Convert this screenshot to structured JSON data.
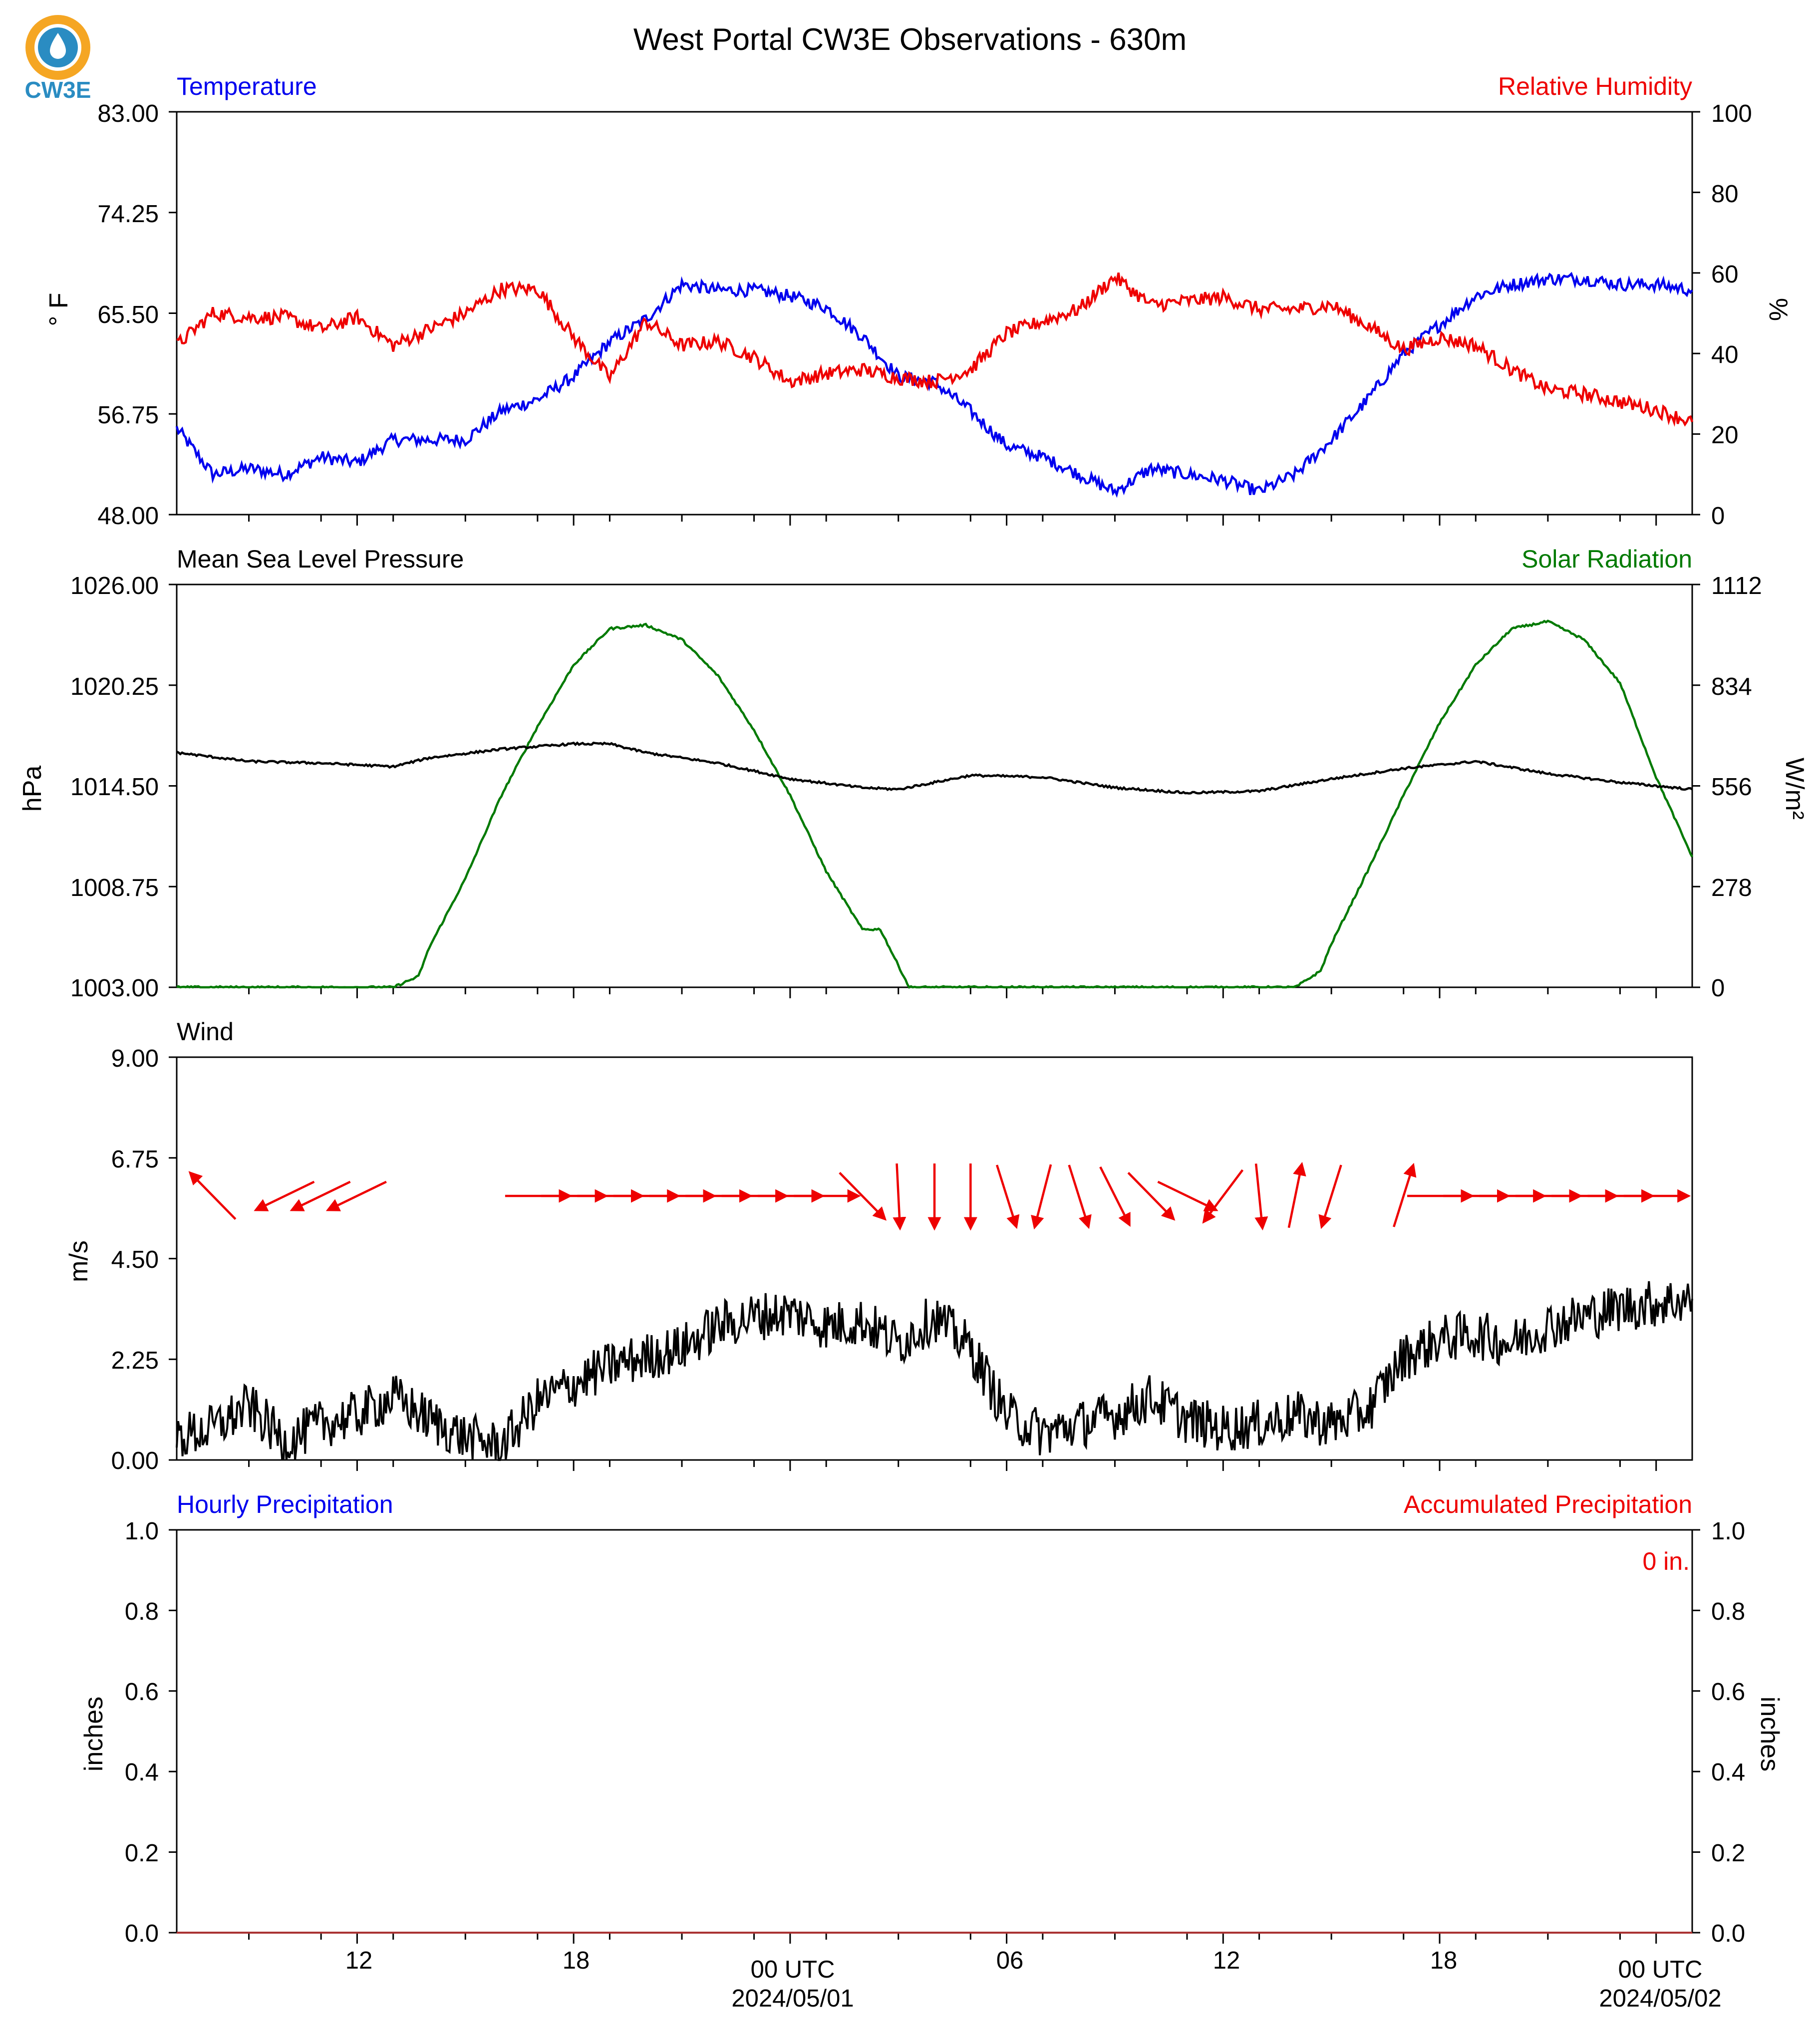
{
  "header": {
    "title": "West Portal CW3E Observations - 630m",
    "logo_text": "CW3E"
  },
  "colors": {
    "blue": "#0000ee",
    "red": "#ee0000",
    "green": "#007a00",
    "black": "#000000",
    "logo_orange": "#f5a623",
    "logo_blue": "#2a8cc2"
  },
  "x_axis": {
    "tick_labels": [
      "12",
      "18",
      "00 UTC",
      "06",
      "12",
      "18",
      "00 UTC"
    ],
    "date_labels": [
      "2024/05/01",
      "2024/05/02"
    ]
  },
  "panels": {
    "temp_rh": {
      "left_title": "Temperature",
      "right_title": "Relative Humidity",
      "left_unit": "° F",
      "right_unit": "%",
      "left_ticks": [
        "83.00",
        "74.25",
        "65.50",
        "56.75",
        "48.00"
      ],
      "right_ticks": [
        "100",
        "80",
        "60",
        "40",
        "20",
        "0"
      ]
    },
    "pressure_solar": {
      "left_title": "Mean Sea Level Pressure",
      "right_title": "Solar Radiation",
      "left_unit": "hPa",
      "right_unit": "W/m²",
      "left_ticks": [
        "1026.00",
        "1020.25",
        "1014.50",
        "1008.75",
        "1003.00"
      ],
      "right_ticks": [
        "1112",
        "834",
        "556",
        "278",
        "0"
      ]
    },
    "wind": {
      "left_title": "Wind",
      "left_unit": "m/s",
      "left_ticks": [
        "9.00",
        "6.75",
        "4.50",
        "2.25",
        "0.00"
      ]
    },
    "precip": {
      "left_title": "Hourly Precipitation",
      "right_title": "Accumulated Precipitation",
      "left_unit": "inches",
      "right_unit": "inches",
      "accum_text": "0 in.",
      "left_ticks": [
        "1.0",
        "0.8",
        "0.6",
        "0.4",
        "0.2",
        "0.0"
      ],
      "right_ticks": [
        "1.0",
        "0.8",
        "0.6",
        "0.4",
        "0.2",
        "0.0"
      ]
    }
  },
  "chart_data": [
    {
      "type": "line",
      "title": "Temperature / Relative Humidity",
      "x_unit": "hours since 2024/04/30 00 UTC",
      "xlim": [
        7,
        49
      ],
      "series": [
        {
          "name": "Temperature",
          "axis": "left",
          "unit": "° F",
          "ylim": [
            48,
            83
          ],
          "x": [
            7,
            8,
            9,
            10,
            11,
            12,
            13,
            14,
            15,
            16,
            17,
            18,
            19,
            20,
            21,
            22,
            23,
            24,
            25,
            26,
            27,
            28,
            29,
            30,
            31,
            32,
            33,
            34,
            35,
            36,
            37,
            38,
            39,
            40,
            41,
            42,
            43,
            44,
            45,
            46,
            47,
            48,
            49
          ],
          "values": [
            55.5,
            51.5,
            52,
            51.5,
            53,
            52.5,
            54.5,
            54.5,
            54.5,
            57,
            58,
            60,
            63,
            65,
            68,
            67.5,
            67.5,
            67,
            66,
            63.5,
            60,
            59.5,
            57,
            54,
            53,
            51.5,
            50,
            52,
            51.5,
            51,
            50,
            51.5,
            54.5,
            58,
            62,
            64.5,
            67,
            68,
            68.5,
            68.5,
            68,
            68,
            67.5
          ]
        },
        {
          "name": "Relative Humidity",
          "axis": "right",
          "unit": "%",
          "ylim": [
            0,
            100
          ],
          "x": [
            7,
            8,
            9,
            10,
            11,
            12,
            13,
            14,
            15,
            16,
            17,
            18,
            19,
            20,
            21,
            22,
            23,
            24,
            25,
            26,
            27,
            28,
            29,
            30,
            31,
            32,
            33,
            34,
            35,
            36,
            37,
            38,
            39,
            40,
            41,
            42,
            43,
            44,
            45,
            46,
            47,
            48,
            49
          ],
          "values": [
            42,
            50,
            49,
            49,
            46,
            49,
            42,
            46,
            50,
            56,
            56,
            44,
            34,
            48,
            42,
            43,
            39,
            33,
            35,
            36,
            34,
            33,
            36,
            45,
            48,
            51,
            59,
            52,
            53,
            54,
            51,
            51,
            52,
            47,
            41,
            44,
            42,
            36,
            31,
            30,
            28,
            26,
            23
          ]
        }
      ]
    },
    {
      "type": "line",
      "title": "Mean Sea Level Pressure / Solar Radiation",
      "x_unit": "hours since 2024/04/30 00 UTC",
      "xlim": [
        7,
        49
      ],
      "series": [
        {
          "name": "Mean Sea Level Pressure",
          "axis": "left",
          "unit": "hPa",
          "ylim": [
            1003,
            1026
          ],
          "x": [
            7,
            9,
            11,
            13,
            14,
            16,
            18,
            19,
            20,
            22,
            24,
            26,
            27,
            29,
            31,
            33,
            35,
            37,
            39,
            41,
            43,
            45,
            47,
            49
          ],
          "values": [
            1016.4,
            1015.9,
            1015.8,
            1015.6,
            1016.1,
            1016.6,
            1016.9,
            1016.9,
            1016.4,
            1015.8,
            1014.9,
            1014.4,
            1014.3,
            1015.1,
            1015.0,
            1014.4,
            1014.1,
            1014.2,
            1014.9,
            1015.5,
            1015.9,
            1015.2,
            1014.7,
            1014.3
          ]
        },
        {
          "name": "Solar Radiation",
          "axis": "right",
          "unit": "W/m²",
          "ylim": [
            0,
            1112
          ],
          "x": [
            7,
            13,
            13.7,
            14,
            15,
            16,
            17,
            18,
            19,
            20,
            21,
            22,
            23,
            24,
            25,
            26,
            26.5,
            27,
            27.3,
            28,
            37,
            38,
            38.7,
            39,
            40,
            41,
            42,
            43,
            44,
            45,
            46,
            47,
            48,
            49
          ],
          "values": [
            0,
            0,
            30,
            110,
            300,
            530,
            720,
            890,
            990,
            1000,
            960,
            860,
            710,
            530,
            320,
            160,
            160,
            60,
            0,
            0,
            0,
            0,
            45,
            120,
            320,
            530,
            730,
            890,
            990,
            1010,
            960,
            840,
            580,
            360
          ]
        }
      ]
    },
    {
      "type": "line",
      "title": "Wind",
      "x_unit": "hours since 2024/04/30 00 UTC",
      "xlim": [
        7,
        49
      ],
      "series": [
        {
          "name": "Wind speed",
          "axis": "left",
          "unit": "m/s",
          "ylim": [
            0,
            9
          ],
          "x": [
            7,
            8,
            9,
            10,
            11,
            12,
            13,
            14,
            15,
            16,
            17,
            18,
            19,
            20,
            21,
            22,
            23,
            24,
            25,
            26,
            27,
            28,
            29,
            30,
            31,
            32,
            33,
            34,
            35,
            36,
            37,
            38,
            39,
            40,
            41,
            42,
            43,
            44,
            45,
            46,
            47,
            48,
            49
          ],
          "values": [
            0.5,
            0.7,
            1.2,
            0.4,
            0.8,
            1.0,
            1.4,
            0.9,
            0.5,
            0.3,
            1.3,
            1.7,
            2.1,
            2.3,
            2.5,
            3.0,
            3.2,
            3.3,
            3.0,
            3.1,
            2.6,
            3.2,
            2.5,
            1.0,
            0.6,
            0.8,
            1.0,
            1.4,
            0.9,
            0.7,
            0.8,
            1.0,
            0.8,
            1.1,
            2.3,
            2.7,
            2.8,
            2.6,
            3.0,
            3.2,
            3.4,
            3.5,
            3.6
          ]
        }
      ],
      "arrow_direction_note": "red arrows drawn along the top show wind direction over time",
      "arrow_x": [
        8,
        10,
        11,
        12,
        17,
        18,
        19,
        20,
        21,
        22,
        23,
        24,
        25,
        26,
        27,
        28,
        29,
        30,
        31,
        32,
        33,
        34,
        35,
        36,
        37,
        38,
        39,
        41,
        42,
        43,
        44,
        45,
        46,
        47,
        48
      ],
      "arrow_dx": [
        -0.7,
        -0.9,
        -0.9,
        -0.9,
        1.0,
        1.0,
        1.0,
        1.0,
        1.0,
        1.0,
        1.0,
        1.0,
        1.0,
        0.7,
        0.05,
        0.0,
        0.0,
        0.3,
        -0.25,
        0.3,
        0.45,
        0.7,
        0.9,
        -0.6,
        0.1,
        0.2,
        -0.3,
        0.3,
        1.0,
        1.0,
        1.0,
        1.0,
        1.0,
        1.0,
        1.0
      ]
    },
    {
      "type": "line",
      "title": "Hourly Precipitation / Accumulated Precipitation",
      "x_unit": "hours since 2024/04/30 00 UTC",
      "xlim": [
        7,
        49
      ],
      "series": [
        {
          "name": "Hourly Precipitation",
          "axis": "left",
          "unit": "inches",
          "ylim": [
            0,
            1
          ],
          "x": [
            7,
            49
          ],
          "values": [
            0,
            0
          ]
        },
        {
          "name": "Accumulated Precipitation",
          "axis": "right",
          "unit": "inches",
          "ylim": [
            0,
            1
          ],
          "x": [
            7,
            49
          ],
          "values": [
            0,
            0
          ]
        }
      ]
    }
  ]
}
